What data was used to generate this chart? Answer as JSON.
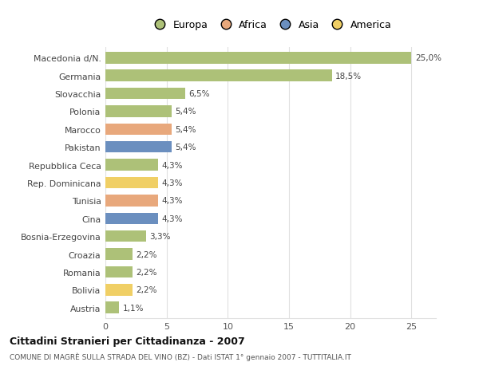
{
  "categories": [
    "Macedonia d/N.",
    "Germania",
    "Slovacchia",
    "Polonia",
    "Marocco",
    "Pakistan",
    "Repubblica Ceca",
    "Rep. Dominicana",
    "Tunisia",
    "Cina",
    "Bosnia-Erzegovina",
    "Croazia",
    "Romania",
    "Bolivia",
    "Austria"
  ],
  "values": [
    25.0,
    18.5,
    6.5,
    5.4,
    5.4,
    5.4,
    4.3,
    4.3,
    4.3,
    4.3,
    3.3,
    2.2,
    2.2,
    2.2,
    1.1
  ],
  "colors": [
    "#adc178",
    "#adc178",
    "#adc178",
    "#adc178",
    "#e8a87c",
    "#6b8fbf",
    "#adc178",
    "#f0cf65",
    "#e8a87c",
    "#6b8fbf",
    "#adc178",
    "#adc178",
    "#adc178",
    "#f0cf65",
    "#adc178"
  ],
  "labels": [
    "25,0%",
    "18,5%",
    "6,5%",
    "5,4%",
    "5,4%",
    "5,4%",
    "4,3%",
    "4,3%",
    "4,3%",
    "4,3%",
    "3,3%",
    "2,2%",
    "2,2%",
    "2,2%",
    "1,1%"
  ],
  "legend_labels": [
    "Europa",
    "Africa",
    "Asia",
    "America"
  ],
  "legend_colors": [
    "#adc178",
    "#e8a87c",
    "#6b8fbf",
    "#f0cf65"
  ],
  "title": "Cittadini Stranieri per Cittadinanza - 2007",
  "subtitle": "COMUNE DI MAGRÈ SULLA STRADA DEL VINO (BZ) - Dati ISTAT 1° gennaio 2007 - TUTTITALIA.IT",
  "xlim": [
    0,
    27
  ],
  "xticks": [
    0,
    5,
    10,
    15,
    20,
    25
  ],
  "background_color": "#ffffff",
  "grid_color": "#e0e0e0"
}
